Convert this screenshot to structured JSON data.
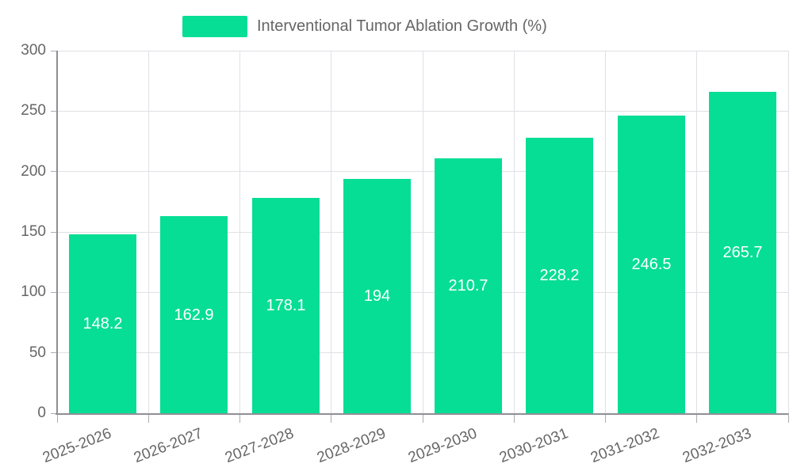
{
  "chart_data": {
    "type": "bar",
    "title": "Interventional Tumor Ablation Growth (%)",
    "categories": [
      "2025-2026",
      "2026-2027",
      "2027-2028",
      "2028-2029",
      "2029-2030",
      "2030-2031",
      "2031-2032",
      "2032-2033"
    ],
    "values": [
      148.2,
      162.9,
      178.1,
      194,
      210.7,
      228.2,
      246.5,
      265.7
    ],
    "xlabel": "",
    "ylabel": "",
    "ylim": [
      0,
      300
    ],
    "yticks": [
      0,
      50,
      100,
      150,
      200,
      250,
      300
    ],
    "grid": true,
    "legend_position": "top",
    "colors": {
      "bar": "#05DE94",
      "grid": "#E0E0E6",
      "axis": "#8F8F94",
      "tick": "#ADADB3",
      "text": "#666666",
      "value_text": "#FFFFFF",
      "background": "#FFFFFF"
    }
  }
}
